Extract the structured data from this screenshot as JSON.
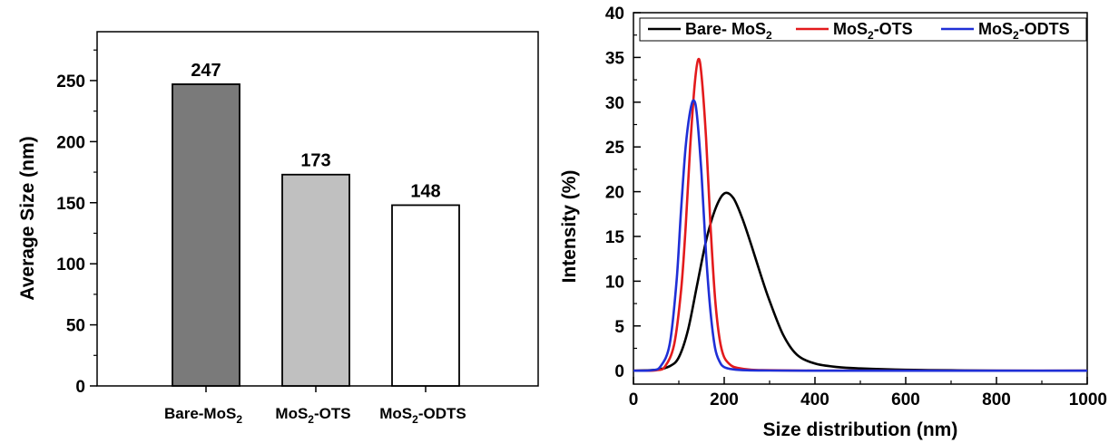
{
  "chart_data": [
    {
      "type": "bar",
      "title": "",
      "xlabel": "",
      "ylabel": "Average Size (nm)",
      "ylim": [
        0,
        290
      ],
      "yticks": [
        "0",
        "50",
        "100",
        "150",
        "200",
        "250"
      ],
      "categories": [
        {
          "base": "Bare-MoS",
          "sub": "2",
          "suffix": ""
        },
        {
          "base": "MoS",
          "sub": "2",
          "suffix": "-OTS"
        },
        {
          "base": "MoS",
          "sub": "2",
          "suffix": "-ODTS"
        }
      ],
      "values": [
        247,
        173,
        148
      ],
      "data_labels": [
        "247",
        "173",
        "148"
      ],
      "bar_colors": [
        "#7a7a7a",
        "#c0c0c0",
        "#ffffff"
      ],
      "grid": false
    },
    {
      "type": "line",
      "title": "",
      "xlabel": "Size distribution (nm)",
      "ylabel": "Intensity (%)",
      "xlim": [
        0,
        1000
      ],
      "ylim": [
        -1.5,
        40
      ],
      "xticks": [
        "0",
        "200",
        "400",
        "600",
        "800",
        "1000"
      ],
      "yticks": [
        "0",
        "5",
        "10",
        "15",
        "20",
        "25",
        "30",
        "35",
        "40"
      ],
      "grid": false,
      "legend_position": "top",
      "series": [
        {
          "name": {
            "base": "Bare- MoS",
            "sub": "2",
            "suffix": ""
          },
          "color": "#000000",
          "x": [
            0,
            50,
            80,
            100,
            120,
            140,
            160,
            180,
            200,
            220,
            240,
            260,
            280,
            300,
            330,
            360,
            400,
            450,
            500,
            600,
            700,
            800,
            1000
          ],
          "y": [
            0,
            0.1,
            0.5,
            1.5,
            4.5,
            9.5,
            14.5,
            18,
            19.8,
            19.3,
            17,
            14,
            10.8,
            7.8,
            4,
            1.8,
            0.8,
            0.4,
            0.25,
            0.1,
            0.05,
            0,
            0
          ]
        },
        {
          "name": {
            "base": "MoS",
            "sub": "2",
            "suffix": "-OTS"
          },
          "color": "#e31a1c",
          "x": [
            0,
            50,
            70,
            90,
            105,
            115,
            125,
            135,
            143,
            150,
            160,
            170,
            180,
            190,
            200,
            215,
            230,
            260,
            300,
            400,
            600,
            1000
          ],
          "y": [
            0,
            0.05,
            0.5,
            3,
            9,
            16,
            25,
            32,
            34.8,
            33,
            26,
            16,
            8,
            3.5,
            1.5,
            0.6,
            0.3,
            0.1,
            0.05,
            0,
            0,
            0
          ]
        },
        {
          "name": {
            "base": "MoS",
            "sub": "2",
            "suffix": "-ODTS"
          },
          "color": "#1f2fd6",
          "x": [
            0,
            40,
            60,
            80,
            95,
            105,
            115,
            125,
            133,
            140,
            150,
            160,
            170,
            180,
            190,
            200,
            220,
            250,
            300,
            400,
            600,
            1000
          ],
          "y": [
            0,
            0.05,
            0.5,
            3,
            10,
            18,
            25,
            29,
            30.2,
            28.5,
            22,
            13,
            6.5,
            2.5,
            1,
            0.4,
            0.15,
            0.05,
            0.02,
            0,
            0,
            0
          ]
        }
      ]
    }
  ]
}
